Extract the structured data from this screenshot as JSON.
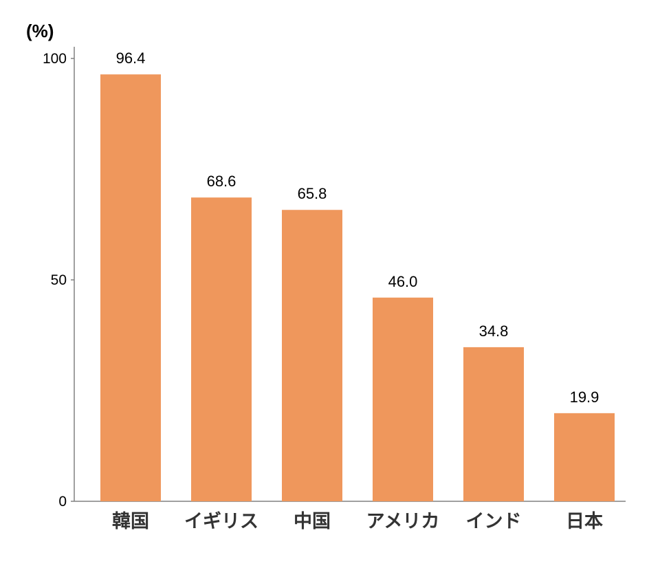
{
  "chart_data": {
    "type": "bar",
    "ylabel": "(%)",
    "categories": [
      "韓国",
      "イギリス",
      "中国",
      "アメリカ",
      "インド",
      "日本"
    ],
    "values": [
      96.4,
      68.6,
      65.8,
      46.0,
      34.8,
      19.9
    ],
    "value_labels": [
      "96.4",
      "68.6",
      "65.8",
      "46.0",
      "34.8",
      "19.9"
    ],
    "yticks": [
      0,
      50,
      100
    ],
    "ylim": [
      0,
      100
    ],
    "grid": false,
    "bar_color": "#EF975C",
    "axis_color": "#808080"
  }
}
